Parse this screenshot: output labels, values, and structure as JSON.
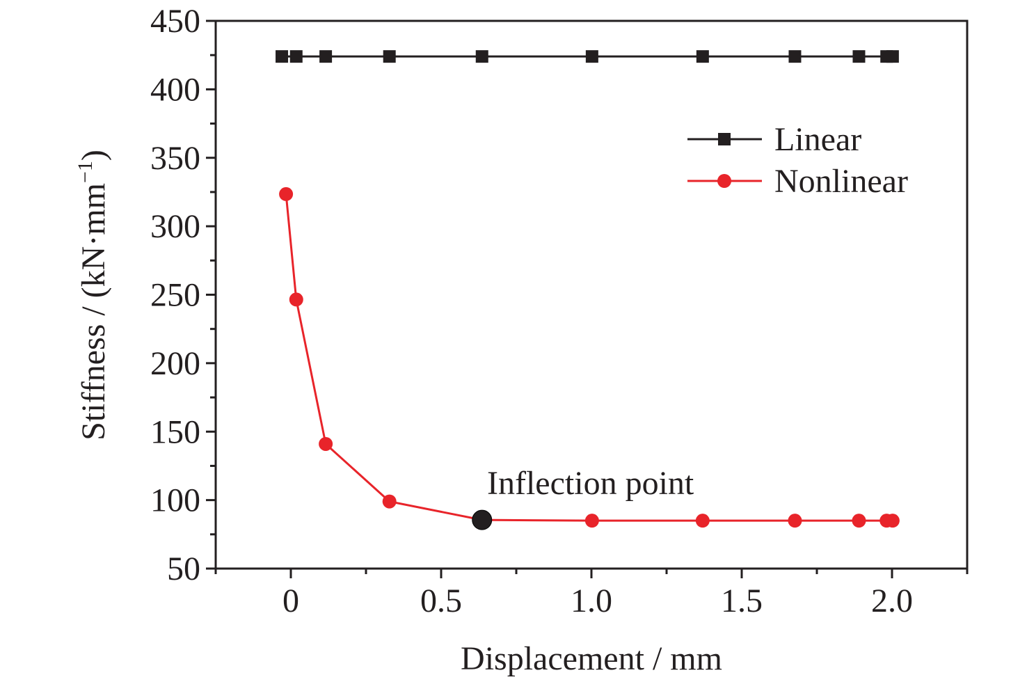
{
  "chart_data": {
    "type": "line",
    "title": "",
    "xlabel": "Displacement / mm",
    "ylabel": "Stiffness / (kN·mm",
    "ylabel_sup": "−1",
    "ylabel_close": ")",
    "xlim": [
      -0.25,
      2.25
    ],
    "ylim": [
      50,
      450
    ],
    "xticks": [
      0,
      0.5,
      1.0,
      1.5,
      2.0
    ],
    "xtick_labels": [
      "0",
      "0.5",
      "1.0",
      "1.5",
      "2.0"
    ],
    "yticks": [
      50,
      100,
      150,
      200,
      250,
      300,
      350,
      400,
      450
    ],
    "ytick_labels": [
      "50",
      "100",
      "150",
      "200",
      "250",
      "300",
      "350",
      "400",
      "450"
    ],
    "grid": false,
    "legend_position": "top-right",
    "series": [
      {
        "name": "Linear",
        "color": "#231f20",
        "marker": "square",
        "x": [
          -0.03,
          0.018,
          0.116,
          0.328,
          0.636,
          1.002,
          1.37,
          1.677,
          1.89,
          1.982,
          2.002
        ],
        "y": [
          424,
          424,
          424,
          424,
          424,
          424,
          424,
          424,
          424,
          424,
          424
        ]
      },
      {
        "name": "Nonlinear",
        "color": "#e8242a",
        "marker": "circle",
        "x": [
          -0.016,
          0.018,
          0.116,
          0.328,
          0.636,
          1.002,
          1.37,
          1.677,
          1.89,
          1.982,
          2.002
        ],
        "y": [
          323.5,
          246.5,
          141,
          99,
          85.5,
          85,
          85,
          85,
          85,
          85,
          85
        ]
      }
    ],
    "annotations": [
      {
        "text": "Inflection point",
        "x": 0.636,
        "y": 85.5
      }
    ]
  }
}
